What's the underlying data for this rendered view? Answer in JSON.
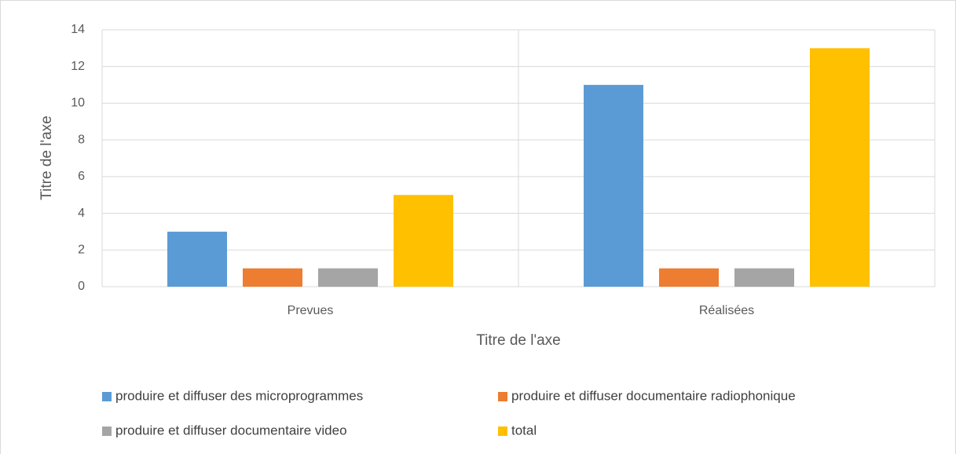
{
  "chart_data": {
    "type": "bar",
    "categories": [
      "Prevues",
      "Réalisées"
    ],
    "series": [
      {
        "name": "produire et diffuser des microprogrammes",
        "color": "#5b9bd5",
        "values": [
          3,
          11
        ]
      },
      {
        "name": "produire et diffuser documentaire radiophonique",
        "color": "#ed7d31",
        "values": [
          1,
          1
        ]
      },
      {
        "name": "produire et diffuser documentaire video",
        "color": "#a5a5a5",
        "values": [
          1,
          1
        ]
      },
      {
        "name": "total",
        "color": "#ffc000",
        "values": [
          5,
          13
        ]
      }
    ],
    "x_label": "Titre de l'axe",
    "y_label": "Titre de l'axe",
    "ylim": [
      0,
      14
    ],
    "yticks": [
      0,
      2,
      4,
      6,
      8,
      10,
      12,
      14
    ],
    "grid": true,
    "legend": "bottom"
  }
}
